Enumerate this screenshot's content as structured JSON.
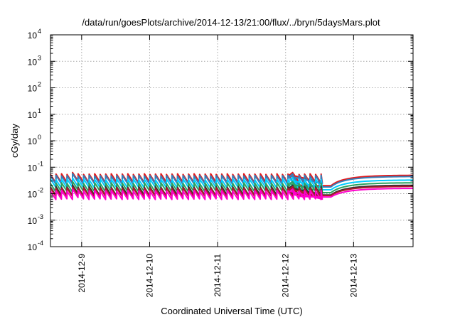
{
  "chart_data": {
    "type": "line",
    "title": "/data/run/goesPlots/archive/2014-12-13/21:00/flux/../bryn/5daysMars.plot",
    "xlabel": "Coordinated Universal Time (UTC)",
    "ylabel": "cGy/day",
    "yscale": "log",
    "ylim": [
      0.0001,
      10000
    ],
    "xlim": [
      "2014-12-08T13:00",
      "2014-12-13T21:00"
    ],
    "x_ticks": [
      "2014-12-9",
      "2014-12-10",
      "2014-12-11",
      "2014-12-12",
      "2014-12-13"
    ],
    "y_ticks": [
      {
        "base": "10",
        "exp": "-4"
      },
      {
        "base": "10",
        "exp": "-3"
      },
      {
        "base": "10",
        "exp": "-2"
      },
      {
        "base": "10",
        "exp": "-1"
      },
      {
        "base": "10",
        "exp": "0"
      },
      {
        "base": "10",
        "exp": "1"
      },
      {
        "base": "10",
        "exp": "2"
      },
      {
        "base": "10",
        "exp": "3"
      },
      {
        "base": "10",
        "exp": "4"
      }
    ],
    "grid": true,
    "legend": "none",
    "series": [
      {
        "color": "#e41a1c",
        "values": {
          "start": 0.055,
          "dip": 0.02,
          "end": 0.05
        }
      },
      {
        "color": "#377eb8",
        "values": {
          "start": 0.048,
          "dip": 0.018,
          "end": 0.045
        }
      },
      {
        "color": "#00ccff",
        "values": {
          "start": 0.035,
          "dip": 0.014,
          "end": 0.033
        }
      },
      {
        "color": "#2ca25f",
        "values": {
          "start": 0.025,
          "dip": 0.011,
          "end": 0.026
        }
      },
      {
        "color": "#333333",
        "values": {
          "start": 0.018,
          "dip": 0.009,
          "end": 0.021
        }
      },
      {
        "color": "#b2182b",
        "values": {
          "start": 0.016,
          "dip": 0.0085,
          "end": 0.019
        }
      },
      {
        "color": "#ff00cc",
        "values": {
          "start": 0.013,
          "dip": 0.0075,
          "end": 0.016
        }
      }
    ]
  }
}
